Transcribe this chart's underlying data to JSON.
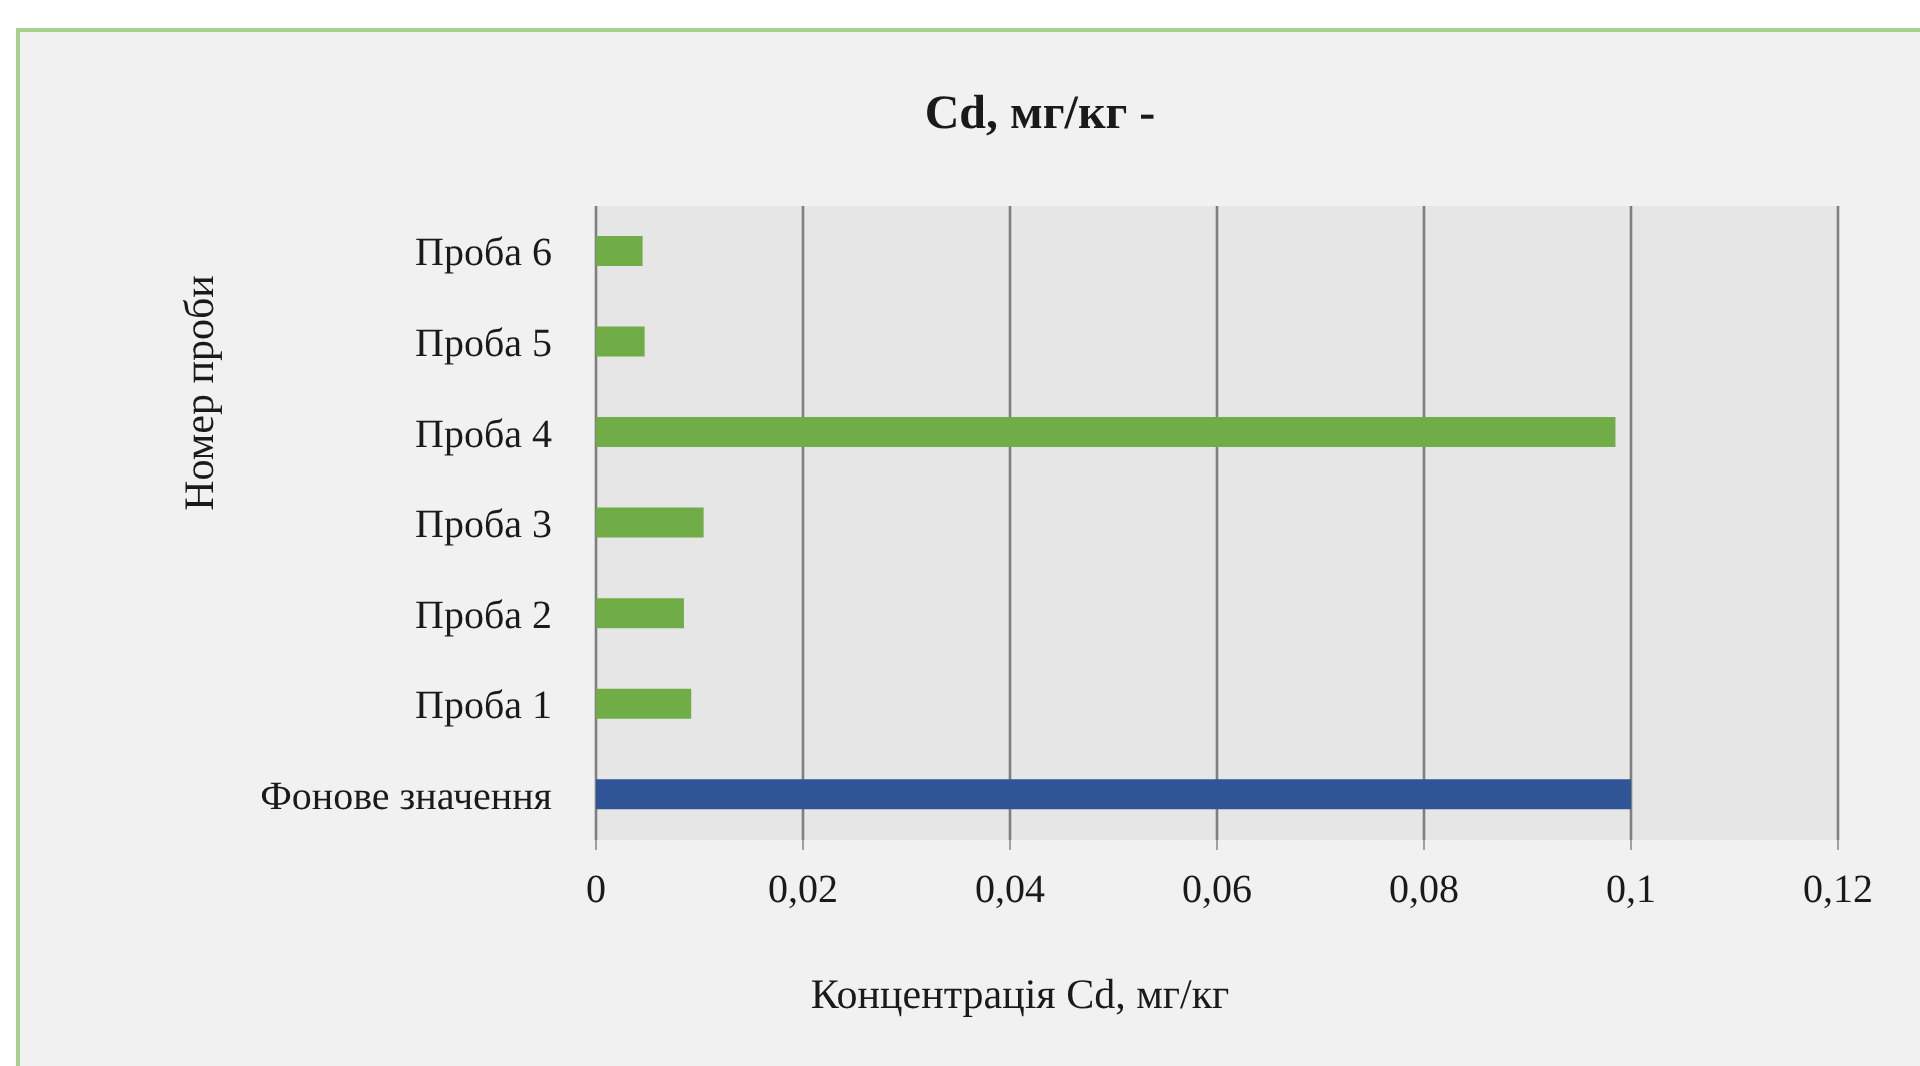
{
  "chart_data": {
    "type": "bar",
    "orientation": "horizontal",
    "title": "Cd, мг/кг -",
    "xlabel": "Концентрація Cd, мг/кг",
    "ylabel": "Номер проби",
    "categories": [
      "Проба 6",
      "Проба 5",
      "Проба 4",
      "Проба 3",
      "Проба 2",
      "Проба 1",
      "Фонове значення"
    ],
    "values": [
      0.0045,
      0.0047,
      0.0985,
      0.0104,
      0.0085,
      0.0092,
      0.1
    ],
    "colors": [
      "#70ad47",
      "#70ad47",
      "#70ad47",
      "#70ad47",
      "#70ad47",
      "#70ad47",
      "#2f5597"
    ],
    "xlim": [
      0,
      0.12
    ],
    "xticks": [
      0,
      {
        "value": 0.02,
        "label": "0,02"
      },
      {
        "value": 0.04,
        "label": "0,04"
      },
      {
        "value": 0.06,
        "label": "0,06"
      },
      {
        "value": 0.08,
        "label": "0,08"
      },
      {
        "value": 0.1,
        "label": "0,1"
      },
      {
        "value": 0.12,
        "label": "0,12"
      }
    ],
    "grid": "x"
  }
}
